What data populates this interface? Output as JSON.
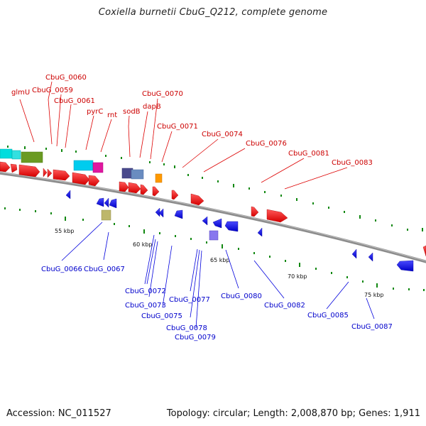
{
  "title": "Coxiella burnetii CbuG_Q212, complete genome",
  "footer": {
    "accession": "Accession: NC_011527",
    "info": "Topology: circular; Length: 2,008,870 bp; Genes: 1,911"
  },
  "colors": {
    "forward_gene": "#ff0000",
    "reverse_gene": "#0000ff",
    "forward_label": "#cc0000",
    "reverse_label": "#0000cc",
    "backbone": "#888888",
    "tick": "#118811"
  },
  "ruler_labels": [
    "55 kbp",
    "60 kbp",
    "65 kbp",
    "70 kbp",
    "75 kbp"
  ],
  "forward_labels": [
    "glmU",
    "CbuG_0060",
    "CbuG_0059",
    "CbuG_0061",
    "pyrC",
    "rnt",
    "sodB",
    "CbuG_0070",
    "dapB",
    "CbuG_0071",
    "CbuG_0074",
    "CbuG_0076",
    "CbuG_0081",
    "CbuG_0083"
  ],
  "reverse_labels": [
    "CbuG_0066",
    "CbuG_0067",
    "CbuG_0072",
    "CbuG_0073",
    "CbuG_0075",
    "CbuG_0077",
    "CbuG_0078",
    "CbuG_0079",
    "CbuG_0080",
    "CbuG_0082",
    "CbuG_0085",
    "CbuG_0087"
  ]
}
